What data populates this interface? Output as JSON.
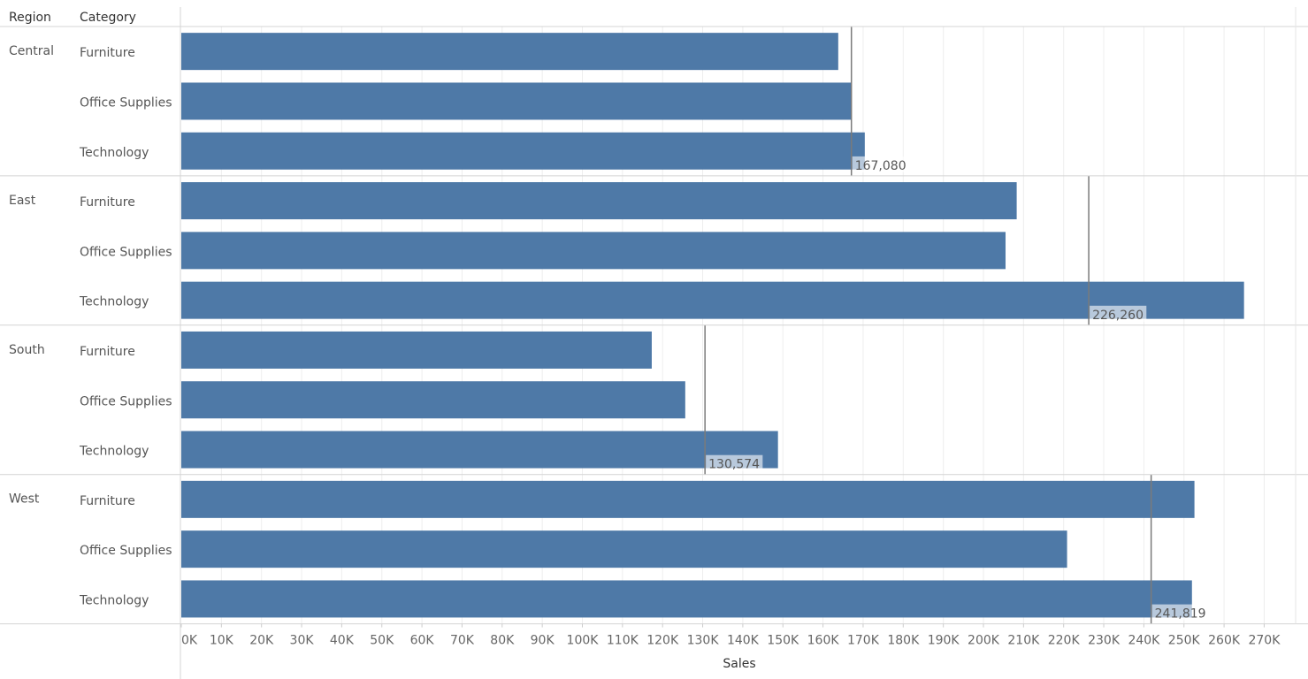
{
  "chart_data": {
    "type": "bar",
    "orientation": "horizontal",
    "headers": {
      "region": "Region",
      "category": "Category"
    },
    "xlabel": "Sales",
    "xlim": [
      0,
      275000
    ],
    "ticks": [
      "0K",
      "10K",
      "20K",
      "30K",
      "40K",
      "50K",
      "60K",
      "70K",
      "80K",
      "90K",
      "100K",
      "110K",
      "120K",
      "130K",
      "140K",
      "150K",
      "160K",
      "170K",
      "180K",
      "190K",
      "200K",
      "210K",
      "220K",
      "230K",
      "240K",
      "250K",
      "260K",
      "270K"
    ],
    "bar_color": "#4e79a7",
    "grid": true,
    "groups": [
      {
        "region": "Central",
        "reference_value": 167080,
        "reference_label": "167,080",
        "rows": [
          {
            "category": "Furniture",
            "value": 163797
          },
          {
            "category": "Office Supplies",
            "value": 167026
          },
          {
            "category": "Technology",
            "value": 170416
          }
        ]
      },
      {
        "region": "East",
        "reference_value": 226260,
        "reference_label": "226,260",
        "rows": [
          {
            "category": "Furniture",
            "value": 208291
          },
          {
            "category": "Office Supplies",
            "value": 205516
          },
          {
            "category": "Technology",
            "value": 264974
          }
        ]
      },
      {
        "region": "South",
        "reference_value": 130574,
        "reference_label": "130,574",
        "rows": [
          {
            "category": "Furniture",
            "value": 117299
          },
          {
            "category": "Office Supplies",
            "value": 125651
          },
          {
            "category": "Technology",
            "value": 148772
          }
        ]
      },
      {
        "region": "West",
        "reference_value": 241819,
        "reference_label": "241,819",
        "rows": [
          {
            "category": "Furniture",
            "value": 252613
          },
          {
            "category": "Office Supplies",
            "value": 220853
          },
          {
            "category": "Technology",
            "value": 251992
          }
        ]
      }
    ]
  }
}
